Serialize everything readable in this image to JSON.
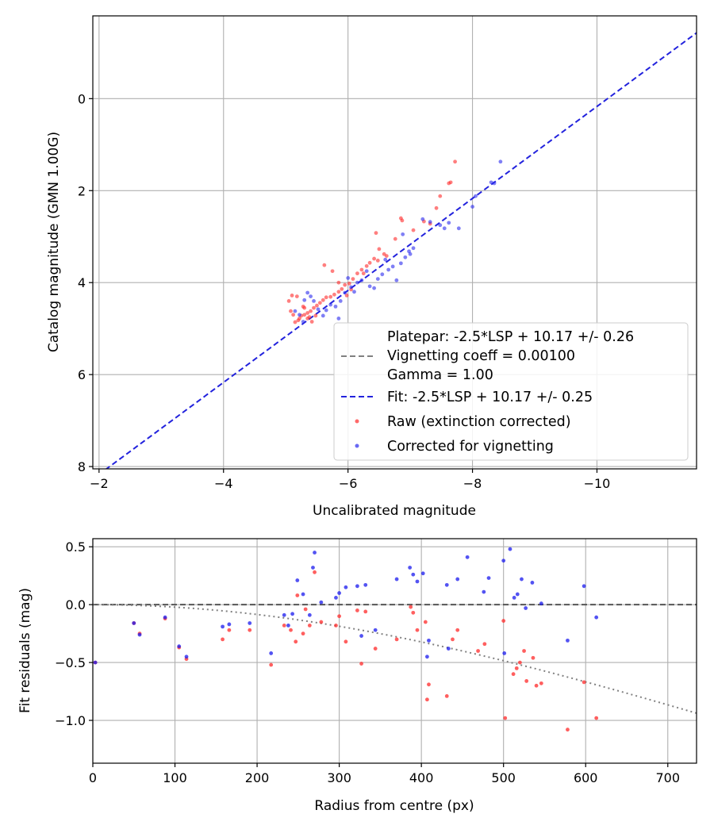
{
  "chart_data": [
    {
      "type": "scatter",
      "title": "",
      "xlabel": "Uncalibrated magnitude",
      "ylabel": "Catalog magnitude (GMN 1.00G)",
      "xlim": [
        -1.9,
        -11.6
      ],
      "ylim": [
        8.05,
        -1.8
      ],
      "x_ticks": [
        -2,
        -4,
        -6,
        -8,
        -10
      ],
      "x_tick_labels": [
        "−2",
        "−4",
        "−6",
        "−8",
        "−10"
      ],
      "y_ticks": [
        0,
        2,
        4,
        6,
        8
      ],
      "y_tick_labels": [
        "0",
        "2",
        "4",
        "6",
        "8"
      ],
      "grid": true,
      "legend_position": "lower-right",
      "lines": [
        {
          "name": "Platepar",
          "label": "Platepar: -2.5*LSP + 10.17 +/- 0.26",
          "color": "#ffffff",
          "style": "none",
          "x": [
            -2.1,
            -11.6
          ],
          "y": [
            8.07,
            -1.43
          ]
        },
        {
          "name": "Vignetting",
          "label": "Vignetting coeff = 0.00100",
          "color": "#808080",
          "style": "dashed",
          "x": [],
          "y": []
        },
        {
          "name": "Gamma",
          "label": "Gamma = 1.00",
          "color": "#ffffff",
          "style": "none",
          "x": [],
          "y": []
        },
        {
          "name": "Fit",
          "label": "Fit: -2.5*LSP + 10.17 +/- 0.25",
          "color": "#2222dd",
          "style": "dashed",
          "x": [
            -2.1,
            -11.6
          ],
          "y": [
            8.07,
            -1.43
          ]
        }
      ],
      "series": [
        {
          "name": "Raw (extinction corrected)",
          "color": "#ff2a2a",
          "points": [
            [
              -7.72,
              1.37
            ],
            [
              -7.65,
              1.82
            ],
            [
              -7.62,
              1.84
            ],
            [
              -7.48,
              2.12
            ],
            [
              -7.42,
              2.38
            ],
            [
              -7.32,
              2.72
            ],
            [
              -7.22,
              2.67
            ],
            [
              -7.05,
              2.86
            ],
            [
              -6.85,
              2.6
            ],
            [
              -6.87,
              2.65
            ],
            [
              -6.45,
              2.92
            ],
            [
              -6.5,
              3.27
            ],
            [
              -6.76,
              3.05
            ],
            [
              -6.58,
              3.38
            ],
            [
              -6.62,
              3.42
            ],
            [
              -6.48,
              3.52
            ],
            [
              -6.42,
              3.48
            ],
            [
              -6.35,
              3.57
            ],
            [
              -6.3,
              3.64
            ],
            [
              -6.22,
              3.72
            ],
            [
              -6.15,
              3.8
            ],
            [
              -6.08,
              3.92
            ],
            [
              -6.02,
              4.02
            ],
            [
              -5.95,
              4.05
            ],
            [
              -5.9,
              4.14
            ],
            [
              -5.85,
              4.2
            ],
            [
              -5.78,
              4.26
            ],
            [
              -5.72,
              4.31
            ],
            [
              -5.65,
              4.32
            ],
            [
              -5.6,
              4.38
            ],
            [
              -5.55,
              4.44
            ],
            [
              -5.5,
              4.5
            ],
            [
              -5.45,
              4.55
            ],
            [
              -5.4,
              4.62
            ],
            [
              -5.35,
              4.66
            ],
            [
              -5.3,
              4.7
            ],
            [
              -5.25,
              4.72
            ],
            [
              -5.22,
              4.78
            ],
            [
              -5.2,
              4.82
            ],
            [
              -5.15,
              4.86
            ],
            [
              -5.12,
              4.7
            ],
            [
              -5.08,
              4.62
            ],
            [
              -5.05,
              4.4
            ],
            [
              -5.1,
              4.28
            ],
            [
              -5.28,
              4.52
            ],
            [
              -5.38,
              4.75
            ],
            [
              -5.62,
              3.62
            ],
            [
              -5.75,
              3.75
            ],
            [
              -5.85,
              4.0
            ],
            [
              -6.25,
              3.8
            ],
            [
              -5.98,
              4.28
            ],
            [
              -6.05,
              4.15
            ],
            [
              -5.18,
              4.3
            ],
            [
              -5.3,
              4.55
            ],
            [
              -5.35,
              4.78
            ],
            [
              -5.42,
              4.85
            ],
            [
              -5.48,
              4.72
            ]
          ]
        },
        {
          "name": "Corrected for vignetting",
          "color": "#2a2aee",
          "points": [
            [
              -8.45,
              1.37
            ],
            [
              -8.3,
              1.82
            ],
            [
              -8.35,
              1.84
            ],
            [
              -8.05,
              2.12
            ],
            [
              -8.0,
              2.35
            ],
            [
              -7.78,
              2.82
            ],
            [
              -7.62,
              2.7
            ],
            [
              -7.55,
              2.82
            ],
            [
              -7.48,
              2.75
            ],
            [
              -7.32,
              2.68
            ],
            [
              -7.2,
              2.62
            ],
            [
              -6.88,
              2.95
            ],
            [
              -7.05,
              3.25
            ],
            [
              -6.98,
              3.32
            ],
            [
              -6.92,
              3.45
            ],
            [
              -6.85,
              3.58
            ],
            [
              -6.72,
              3.65
            ],
            [
              -6.65,
              3.72
            ],
            [
              -6.78,
              3.95
            ],
            [
              -6.55,
              3.82
            ],
            [
              -6.48,
              3.92
            ],
            [
              -6.42,
              4.12
            ],
            [
              -6.35,
              4.08
            ],
            [
              -6.22,
              3.95
            ],
            [
              -6.15,
              4.0
            ],
            [
              -6.05,
              4.1
            ],
            [
              -6.0,
              3.9
            ],
            [
              -5.95,
              4.22
            ],
            [
              -5.88,
              4.4
            ],
            [
              -5.8,
              4.52
            ],
            [
              -5.72,
              4.48
            ],
            [
              -5.65,
              4.6
            ],
            [
              -5.6,
              4.72
            ],
            [
              -5.52,
              4.58
            ],
            [
              -5.45,
              4.4
            ],
            [
              -5.4,
              4.3
            ],
            [
              -5.35,
              4.22
            ],
            [
              -5.3,
              4.38
            ],
            [
              -5.28,
              4.85
            ],
            [
              -5.22,
              4.7
            ],
            [
              -5.15,
              4.62
            ],
            [
              -5.85,
              4.78
            ],
            [
              -6.1,
              4.2
            ],
            [
              -6.3,
              3.75
            ],
            [
              -6.6,
              3.5
            ],
            [
              -7.0,
              3.38
            ]
          ]
        }
      ]
    },
    {
      "type": "scatter",
      "title": "",
      "xlabel": "Radius from centre (px)",
      "ylabel": "Fit residuals (mag)",
      "xlim": [
        0,
        735
      ],
      "ylim": [
        -1.37,
        0.57
      ],
      "x_ticks": [
        0,
        100,
        200,
        300,
        400,
        500,
        600,
        700
      ],
      "x_tick_labels": [
        "0",
        "100",
        "200",
        "300",
        "400",
        "500",
        "600",
        "700"
      ],
      "y_ticks": [
        0.5,
        0.0,
        -0.5,
        -1.0
      ],
      "y_tick_labels": [
        "0.5",
        "0.0",
        "−0.5",
        "−1.0"
      ],
      "grid": true,
      "lines": [
        {
          "name": "zero",
          "color": "#555555",
          "style": "dashed",
          "x": [
            0,
            735
          ],
          "y": [
            0,
            0
          ]
        },
        {
          "name": "vignetting model",
          "color": "#808080",
          "style": "dotted",
          "func": "vignetting",
          "coeff": 0.001
        }
      ],
      "series": [
        {
          "name": "Raw (extinction corrected)",
          "color": "#ff2a2a",
          "points": [
            [
              3,
              -0.5
            ],
            [
              50,
              -0.16
            ],
            [
              57,
              -0.25
            ],
            [
              88,
              -0.12
            ],
            [
              105,
              -0.37
            ],
            [
              114,
              -0.47
            ],
            [
              158,
              -0.3
            ],
            [
              166,
              -0.22
            ],
            [
              191,
              -0.22
            ],
            [
              217,
              -0.52
            ],
            [
              233,
              -0.18
            ],
            [
              241,
              -0.22
            ],
            [
              247,
              -0.32
            ],
            [
              249,
              0.08
            ],
            [
              256,
              -0.25
            ],
            [
              259,
              -0.04
            ],
            [
              264,
              -0.18
            ],
            [
              270,
              0.28
            ],
            [
              278,
              -0.15
            ],
            [
              296,
              -0.18
            ],
            [
              300,
              -0.1
            ],
            [
              308,
              -0.32
            ],
            [
              322,
              -0.05
            ],
            [
              327,
              -0.51
            ],
            [
              332,
              -0.06
            ],
            [
              344,
              -0.38
            ],
            [
              370,
              -0.3
            ],
            [
              387,
              -0.02
            ],
            [
              390,
              -0.07
            ],
            [
              395,
              -0.22
            ],
            [
              405,
              -0.15
            ],
            [
              407,
              -0.82
            ],
            [
              409,
              -0.69
            ],
            [
              431,
              -0.79
            ],
            [
              438,
              -0.3
            ],
            [
              444,
              -0.22
            ],
            [
              469,
              -0.4
            ],
            [
              477,
              -0.34
            ],
            [
              500,
              -0.14
            ],
            [
              502,
              -0.98
            ],
            [
              512,
              -0.6
            ],
            [
              516,
              -0.55
            ],
            [
              520,
              -0.5
            ],
            [
              525,
              -0.4
            ],
            [
              528,
              -0.66
            ],
            [
              536,
              -0.46
            ],
            [
              540,
              -0.7
            ],
            [
              546,
              -0.68
            ],
            [
              578,
              -1.08
            ],
            [
              598,
              -0.67
            ],
            [
              613,
              -0.98
            ]
          ]
        },
        {
          "name": "Corrected for vignetting",
          "color": "#1a1aee",
          "points": [
            [
              3,
              -0.5
            ],
            [
              50,
              -0.16
            ],
            [
              57,
              -0.26
            ],
            [
              88,
              -0.11
            ],
            [
              105,
              -0.36
            ],
            [
              114,
              -0.45
            ],
            [
              158,
              -0.19
            ],
            [
              166,
              -0.17
            ],
            [
              191,
              -0.16
            ],
            [
              217,
              -0.42
            ],
            [
              233,
              -0.09
            ],
            [
              238,
              -0.18
            ],
            [
              243,
              -0.08
            ],
            [
              249,
              0.21
            ],
            [
              256,
              0.09
            ],
            [
              264,
              -0.09
            ],
            [
              268,
              0.32
            ],
            [
              270,
              0.45
            ],
            [
              278,
              0.02
            ],
            [
              296,
              0.06
            ],
            [
              300,
              0.1
            ],
            [
              308,
              0.15
            ],
            [
              322,
              0.16
            ],
            [
              327,
              -0.27
            ],
            [
              332,
              0.17
            ],
            [
              344,
              -0.22
            ],
            [
              370,
              0.22
            ],
            [
              386,
              0.32
            ],
            [
              390,
              0.26
            ],
            [
              395,
              0.2
            ],
            [
              402,
              0.27
            ],
            [
              407,
              -0.45
            ],
            [
              409,
              -0.31
            ],
            [
              431,
              0.17
            ],
            [
              433,
              -0.38
            ],
            [
              444,
              0.22
            ],
            [
              456,
              0.41
            ],
            [
              476,
              0.11
            ],
            [
              482,
              0.23
            ],
            [
              500,
              0.38
            ],
            [
              501,
              -0.42
            ],
            [
              508,
              0.48
            ],
            [
              513,
              0.06
            ],
            [
              517,
              0.09
            ],
            [
              522,
              0.22
            ],
            [
              527,
              -0.03
            ],
            [
              535,
              0.19
            ],
            [
              546,
              0.01
            ],
            [
              578,
              -0.31
            ],
            [
              598,
              0.16
            ],
            [
              613,
              -0.11
            ]
          ]
        }
      ]
    }
  ]
}
